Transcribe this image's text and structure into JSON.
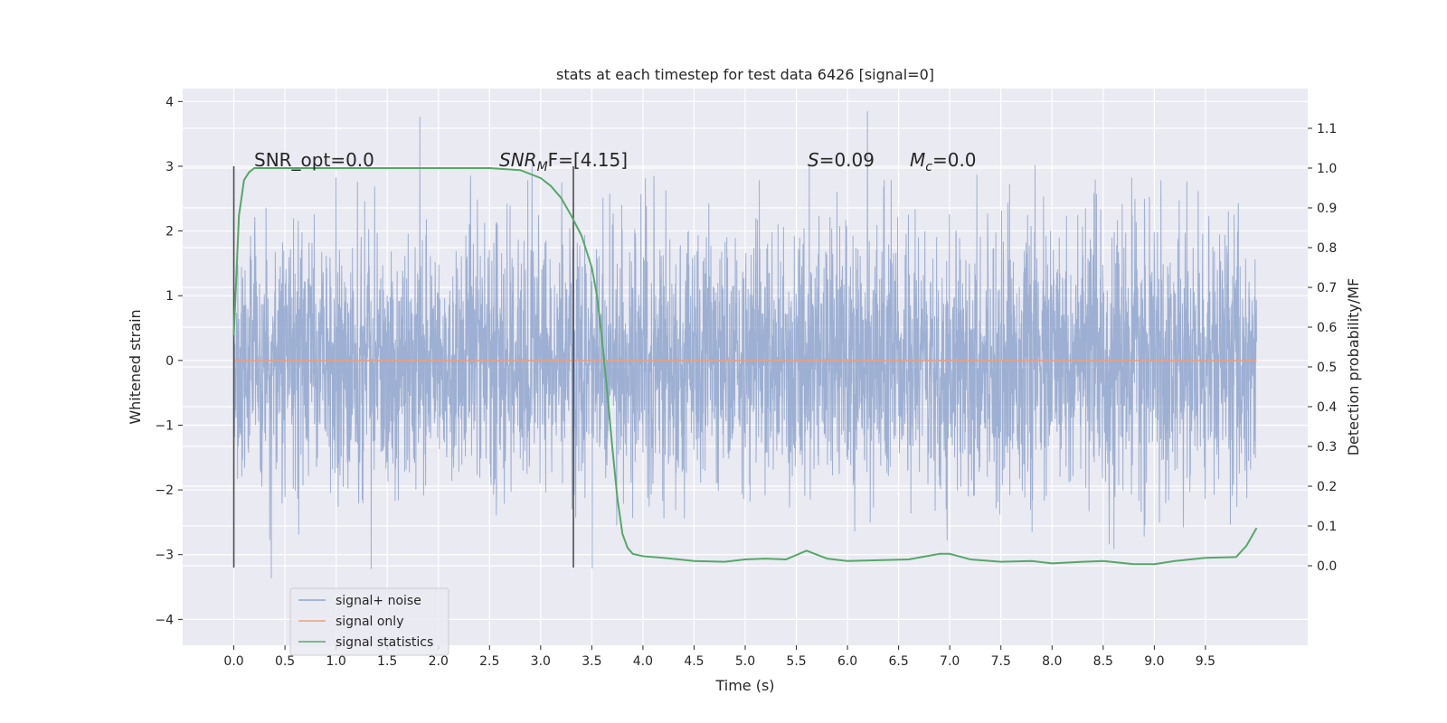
{
  "chart_data": {
    "type": "line",
    "title": "stats at each timestep for test data 6426 [signal=0]",
    "xlabel": "Time (s)",
    "ylabel": "Whitened strain",
    "y2label": "Detection probability/MF",
    "xlim": [
      -0.5,
      10.5
    ],
    "ylim": [
      -4.4,
      4.2
    ],
    "y2lim": [
      -0.2,
      1.2
    ],
    "x_ticks": [
      0.0,
      0.5,
      1.0,
      1.5,
      2.0,
      2.5,
      3.0,
      3.5,
      4.0,
      4.5,
      5.0,
      5.5,
      6.0,
      6.5,
      7.0,
      7.5,
      8.0,
      8.5,
      9.0,
      9.5
    ],
    "x_tick_labels": [
      "0.0",
      "0.5",
      "1.0",
      "1.5",
      "2.0",
      "2.5",
      "3.0",
      "3.5",
      "4.0",
      "4.5",
      "5.0",
      "5.5",
      "6.0",
      "6.5",
      "7.0",
      "7.5",
      "8.0",
      "8.5",
      "9.0",
      "9.5"
    ],
    "y_ticks": [
      -4,
      -3,
      -2,
      -1,
      0,
      1,
      2,
      3,
      4
    ],
    "y_tick_labels": [
      "−4",
      "−3",
      "−2",
      "−1",
      "0",
      "1",
      "2",
      "3",
      "4"
    ],
    "y2_ticks": [
      0.0,
      0.1,
      0.2,
      0.3,
      0.4,
      0.5,
      0.6,
      0.7,
      0.8,
      0.9,
      1.0,
      1.1
    ],
    "y2_tick_labels": [
      "0.0",
      "0.1",
      "0.2",
      "0.3",
      "0.4",
      "0.5",
      "0.6",
      "0.7",
      "0.8",
      "0.9",
      "1.0",
      "1.1"
    ],
    "grid": true,
    "legend_position": "lower-left",
    "series": [
      {
        "name": "signal+ noise",
        "color": "#8fa4cc",
        "axis": "left",
        "x_range": [
          0.0,
          10.0
        ],
        "amplitude_std": 1.0,
        "description_values_min": -4.0,
        "description_values_max": 3.85
      },
      {
        "name": "signal only",
        "color": "#e8a183",
        "axis": "left",
        "x": [
          0.0,
          10.0
        ],
        "y": [
          0.0,
          0.0
        ]
      },
      {
        "name": "signal statistics",
        "color": "#55a868",
        "axis": "right",
        "x": [
          0.0,
          0.05,
          0.1,
          0.15,
          0.2,
          0.5,
          1.0,
          1.5,
          2.0,
          2.5,
          2.8,
          3.0,
          3.1,
          3.2,
          3.3,
          3.4,
          3.5,
          3.55,
          3.6,
          3.65,
          3.7,
          3.75,
          3.8,
          3.85,
          3.9,
          4.0,
          4.2,
          4.5,
          4.8,
          5.0,
          5.2,
          5.4,
          5.6,
          5.8,
          6.0,
          6.3,
          6.6,
          6.9,
          7.0,
          7.2,
          7.5,
          7.8,
          8.0,
          8.3,
          8.5,
          8.8,
          9.0,
          9.2,
          9.5,
          9.8,
          9.9,
          10.0
        ],
        "y": [
          0.58,
          0.88,
          0.97,
          0.99,
          1.0,
          1.0,
          1.0,
          1.0,
          1.0,
          1.0,
          0.995,
          0.975,
          0.955,
          0.925,
          0.88,
          0.83,
          0.75,
          0.68,
          0.57,
          0.44,
          0.3,
          0.17,
          0.08,
          0.045,
          0.03,
          0.024,
          0.02,
          0.012,
          0.01,
          0.016,
          0.018,
          0.016,
          0.038,
          0.018,
          0.012,
          0.014,
          0.016,
          0.03,
          0.03,
          0.016,
          0.01,
          0.012,
          0.006,
          0.01,
          0.012,
          0.004,
          0.004,
          0.012,
          0.02,
          0.022,
          0.05,
          0.095
        ]
      }
    ],
    "vertical_lines_x": [
      0.0,
      3.32
    ],
    "vertical_lines_range": [
      -3.2,
      3.0
    ],
    "annotations": [
      {
        "text": "SNR_opt=0.0",
        "x": 0.2,
        "y": 3.1
      },
      {
        "text": "SNR_MF=[4.15]",
        "x": 2.6,
        "y": 3.1
      },
      {
        "text": "S=0.09",
        "x": 5.6,
        "y": 3.1
      },
      {
        "text": "M_c=0.0",
        "x": 6.6,
        "y": 3.1
      }
    ]
  },
  "labels": {
    "snr_mf_main": "SNR",
    "snr_mf_sub": "M",
    "snr_mf_rest": "F=[4.15]",
    "s_main": "S",
    "s_rest": "=0.09",
    "mc_main": "M",
    "mc_sub": "c",
    "mc_rest": "=0.0",
    "snr_opt": "SNR_opt=0.0"
  }
}
